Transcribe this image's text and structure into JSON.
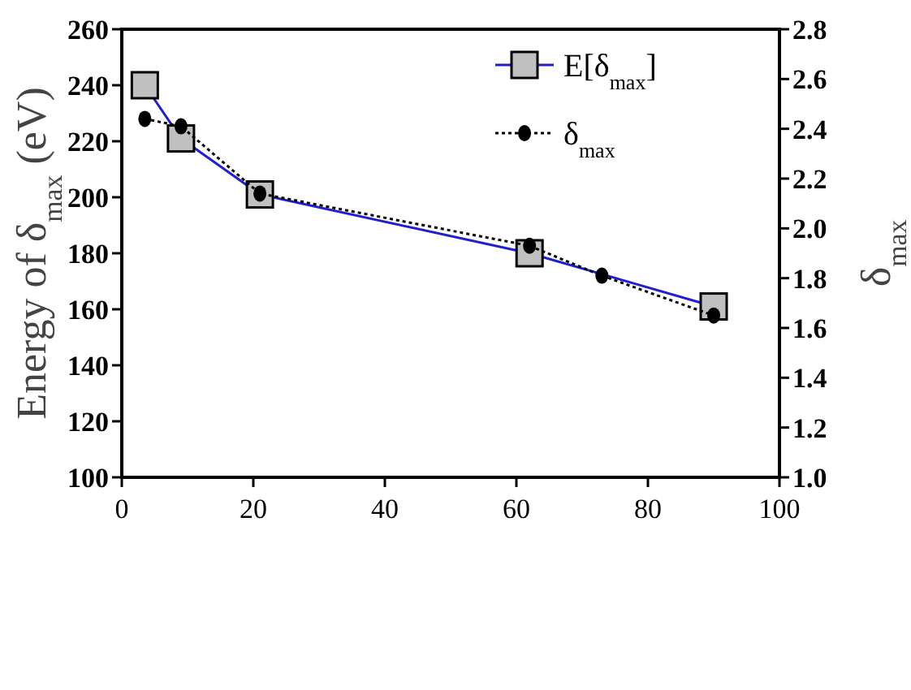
{
  "chart_data": {
    "type": "line",
    "xlabel": null,
    "ylabel": "Energy of δ$_{max}$ (eV)",
    "y2label": "δ$_{max}$",
    "xlim": [
      0,
      100
    ],
    "xticks": [
      0,
      20,
      40,
      60,
      80,
      100
    ],
    "ylim": [
      100,
      260
    ],
    "yticks": [
      100,
      120,
      140,
      160,
      180,
      200,
      220,
      240,
      260
    ],
    "y2lim": [
      1.0,
      2.8
    ],
    "y2ticks": [
      {
        "value": 1.0,
        "label": "1.0"
      },
      1.2,
      1.4,
      1.6,
      1.8,
      {
        "value": 2.0,
        "label": "2.0"
      },
      2.2,
      2.4,
      2.6,
      2.8
    ],
    "legend": "top right",
    "grid": false,
    "series": [
      {
        "name": "E[δ$_{max}$]",
        "color": "#1f1fd0",
        "x": [
          3.5,
          9,
          21,
          62,
          90
        ],
        "values": [
          240,
          221,
          201,
          180,
          161
        ],
        "marker": "square",
        "line_style": "solid"
      },
      {
        "name": "δ$_{max}$",
        "color": "#000000",
        "axis": "y2",
        "x": [
          3.5,
          9,
          21,
          62,
          73,
          90
        ],
        "values": [
          2.44,
          2.41,
          2.14,
          1.93,
          1.81,
          1.65
        ],
        "marker": "circle",
        "line_style": "dotted"
      }
    ]
  }
}
